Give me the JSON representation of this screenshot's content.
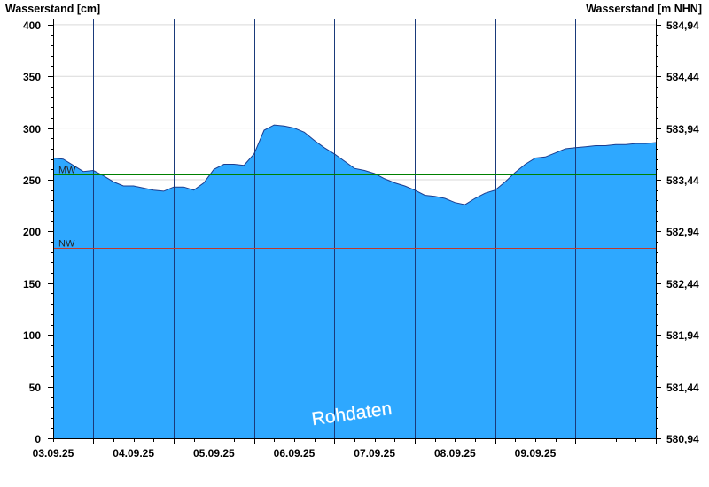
{
  "chart_data": {
    "type": "area",
    "left_axis_title": "Wasserstand [cm]",
    "right_axis_title": "Wasserstand [m NHN]",
    "ylim": [
      0,
      405
    ],
    "y_ticks": [
      0,
      50,
      100,
      150,
      200,
      250,
      300,
      350,
      400
    ],
    "y_tick_labels": [
      "0",
      "50",
      "100",
      "150",
      "200",
      "250",
      "300",
      "350",
      "400"
    ],
    "right_ticks": [
      0,
      50,
      100,
      150,
      200,
      250,
      300,
      350,
      400
    ],
    "right_tick_labels": [
      "580,94",
      "581,44",
      "581,94",
      "582,44",
      "582,94",
      "583,44",
      "583,94",
      "584,44",
      "584,94"
    ],
    "x_range": [
      "02.09.25 12:00",
      "09.09.25 24:00"
    ],
    "x_tick_labels": [
      "03.09.25",
      "04.09.25",
      "05.09.25",
      "06.09.25",
      "07.09.25",
      "08.09.25",
      "09.09.25"
    ],
    "reference_lines": [
      {
        "label": "MW",
        "value": 255,
        "color": "#008000"
      },
      {
        "label": "NW",
        "value": 184,
        "color": "#c0392b"
      }
    ],
    "series": [
      {
        "color": "#2ea8ff",
        "x": [
          "02.09.25 12:00",
          "02.09.25 15:00",
          "02.09.25 18:00",
          "02.09.25 21:00",
          "03.09.25 00:00",
          "03.09.25 03:00",
          "03.09.25 06:00",
          "03.09.25 09:00",
          "03.09.25 12:00",
          "03.09.25 15:00",
          "03.09.25 18:00",
          "03.09.25 21:00",
          "04.09.25 00:00",
          "04.09.25 03:00",
          "04.09.25 06:00",
          "04.09.25 09:00",
          "04.09.25 12:00",
          "04.09.25 15:00",
          "04.09.25 18:00",
          "04.09.25 21:00",
          "05.09.25 00:00",
          "05.09.25 03:00",
          "05.09.25 06:00",
          "05.09.25 09:00",
          "05.09.25 12:00",
          "05.09.25 15:00",
          "05.09.25 18:00",
          "05.09.25 21:00",
          "06.09.25 00:00",
          "06.09.25 03:00",
          "06.09.25 06:00",
          "06.09.25 09:00",
          "06.09.25 12:00",
          "06.09.25 15:00",
          "06.09.25 18:00",
          "06.09.25 21:00",
          "07.09.25 00:00",
          "07.09.25 03:00",
          "07.09.25 06:00",
          "07.09.25 09:00",
          "07.09.25 12:00",
          "07.09.25 15:00",
          "07.09.25 18:00",
          "07.09.25 21:00",
          "08.09.25 00:00",
          "08.09.25 03:00",
          "08.09.25 06:00",
          "08.09.25 09:00",
          "08.09.25 12:00",
          "08.09.25 15:00",
          "08.09.25 18:00",
          "08.09.25 21:00",
          "09.09.25 00:00",
          "09.09.25 03:00",
          "09.09.25 06:00",
          "09.09.25 09:00",
          "09.09.25 12:00",
          "09.09.25 15:00",
          "09.09.25 18:00",
          "09.09.25 21:00",
          "09.09.25 24:00"
        ],
        "values": [
          271,
          270,
          264,
          258,
          259,
          254,
          248,
          244,
          244,
          242,
          240,
          239,
          243,
          243,
          240,
          247,
          260,
          265,
          265,
          264,
          275,
          298,
          303,
          302,
          300,
          296,
          288,
          281,
          275,
          268,
          261,
          259,
          256,
          251,
          247,
          244,
          240,
          235,
          234,
          232,
          228,
          226,
          232,
          237,
          240,
          248,
          257,
          265,
          271,
          272,
          276,
          280,
          281,
          282,
          283,
          283,
          284,
          284,
          285,
          285,
          286
        ]
      }
    ]
  },
  "watermark": "Rohdaten"
}
